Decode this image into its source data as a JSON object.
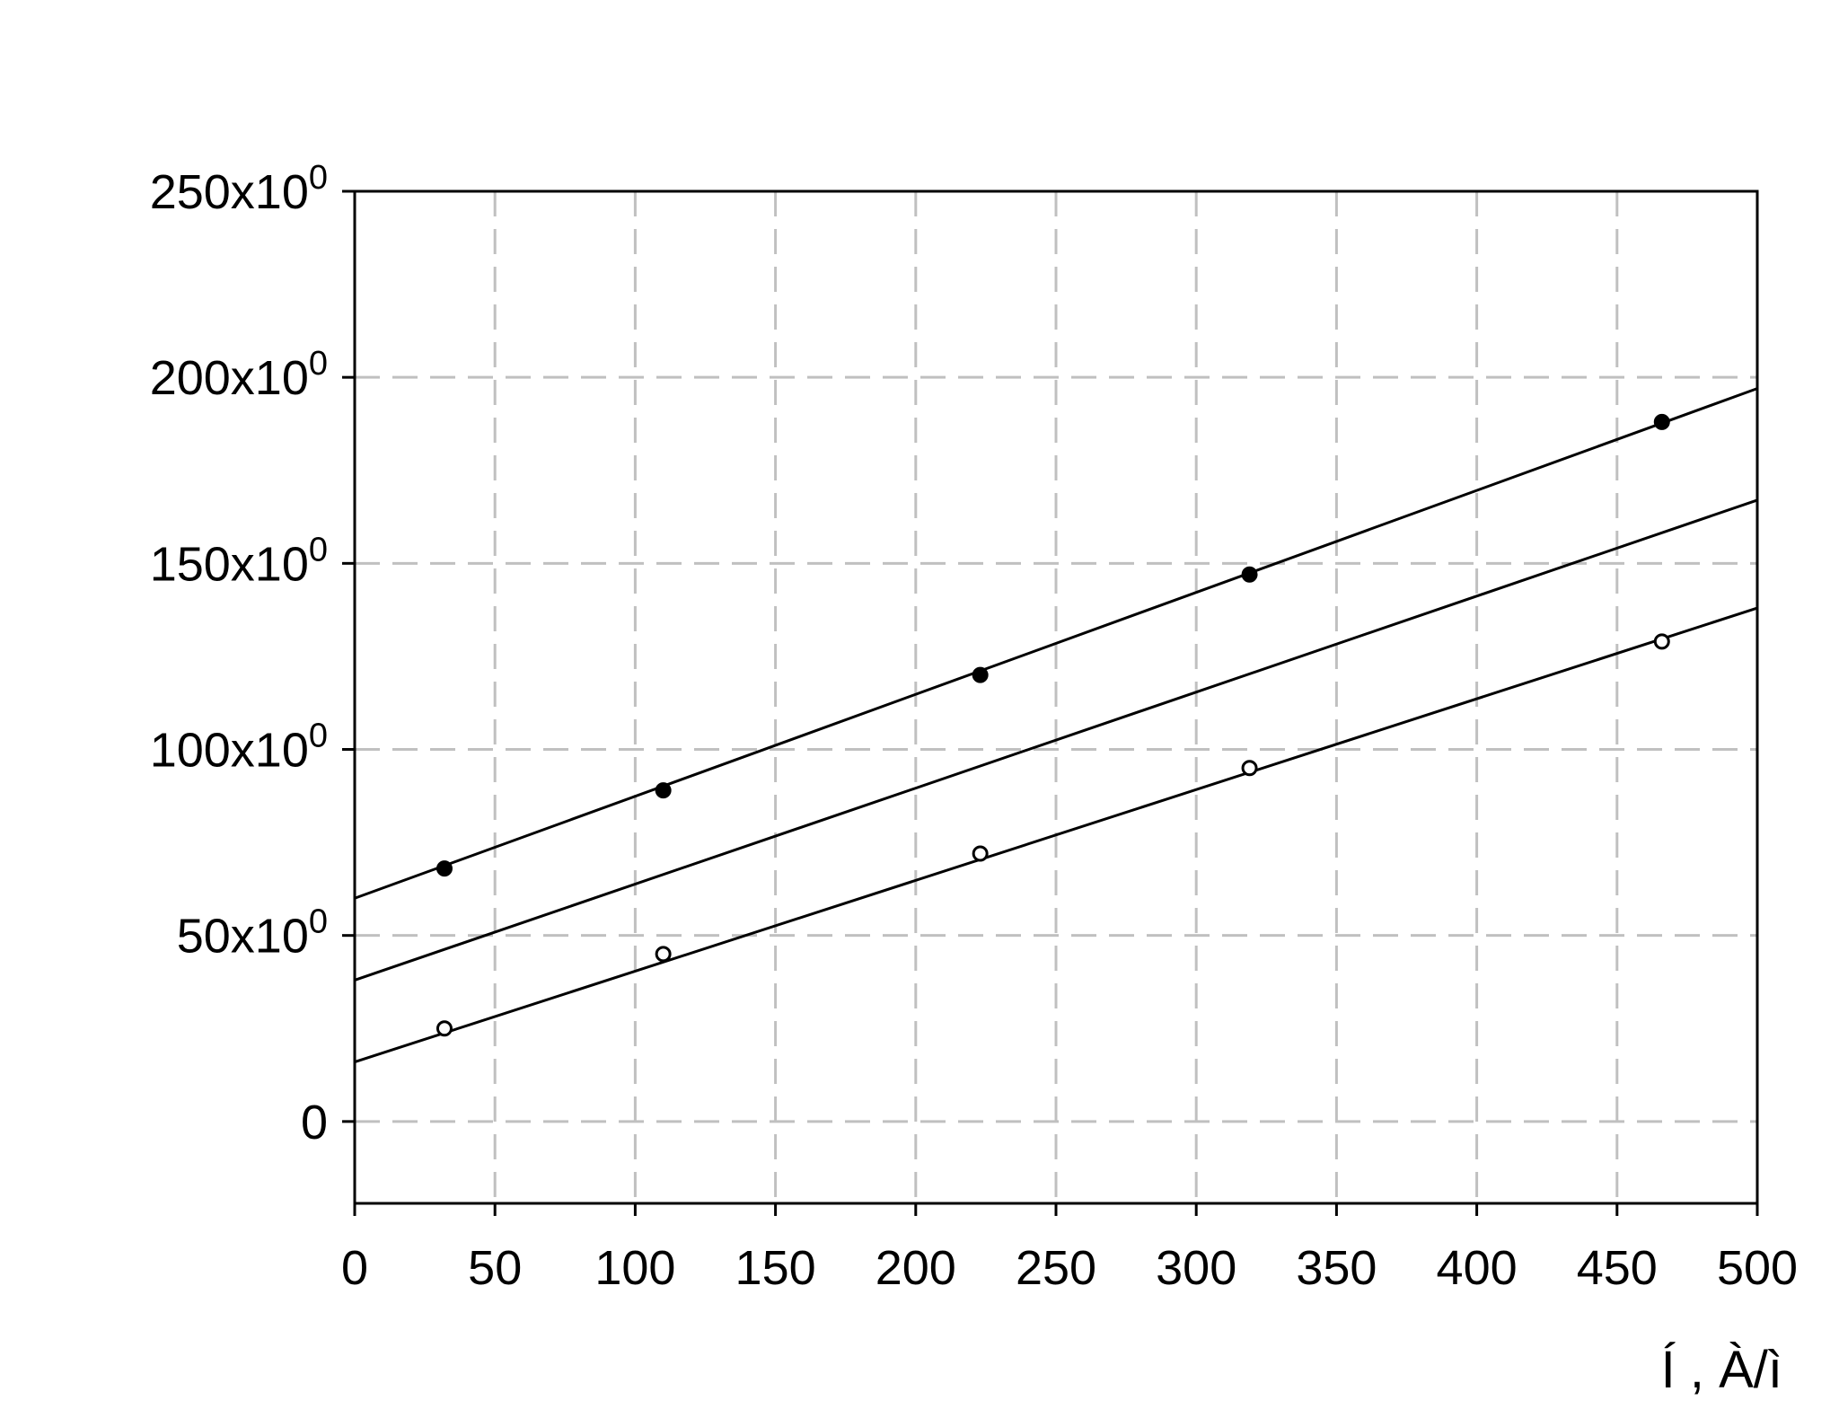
{
  "chart_data": {
    "type": "scatter",
    "title": "",
    "xlabel": "Í , À/ì",
    "ylabel": "",
    "xlim": [
      0,
      500
    ],
    "ylim": [
      -22,
      250
    ],
    "grid": true,
    "grid_style": "dashed",
    "colors": {
      "grid": "#c0c0c0",
      "line": "#000000",
      "background": "#ffffff"
    },
    "x_ticks": [
      0,
      50,
      100,
      150,
      200,
      250,
      300,
      350,
      400,
      450,
      500
    ],
    "x_tick_labels": [
      "0",
      "50",
      "100",
      "150",
      "200",
      "250",
      "300",
      "350",
      "400",
      "450",
      "500"
    ],
    "y_ticks": [
      0,
      50,
      100,
      150,
      200,
      250
    ],
    "y_tick_labels": [
      {
        "base": "0",
        "sup": ""
      },
      {
        "base": "50x10",
        "sup": "0"
      },
      {
        "base": "100x10",
        "sup": "0"
      },
      {
        "base": "150x10",
        "sup": "0"
      },
      {
        "base": "200x10",
        "sup": "0"
      },
      {
        "base": "250x10",
        "sup": "0"
      }
    ],
    "series": [
      {
        "marker": "filled-circle",
        "points": [
          [
            32,
            68
          ],
          [
            110,
            89
          ],
          [
            223,
            120
          ],
          [
            319,
            147
          ],
          [
            466,
            188
          ]
        ],
        "fit": {
          "type": "linear",
          "x": [
            0,
            500
          ],
          "y": [
            60,
            197
          ]
        }
      },
      {
        "marker": "none",
        "points": [],
        "fit": {
          "type": "linear",
          "x": [
            0,
            500
          ],
          "y": [
            38,
            167
          ]
        }
      },
      {
        "marker": "open-circle",
        "points": [
          [
            32,
            25
          ],
          [
            110,
            45
          ],
          [
            223,
            72
          ],
          [
            319,
            95
          ],
          [
            466,
            129
          ]
        ],
        "fit": {
          "type": "linear",
          "x": [
            0,
            500
          ],
          "y": [
            16,
            138
          ]
        }
      }
    ]
  }
}
